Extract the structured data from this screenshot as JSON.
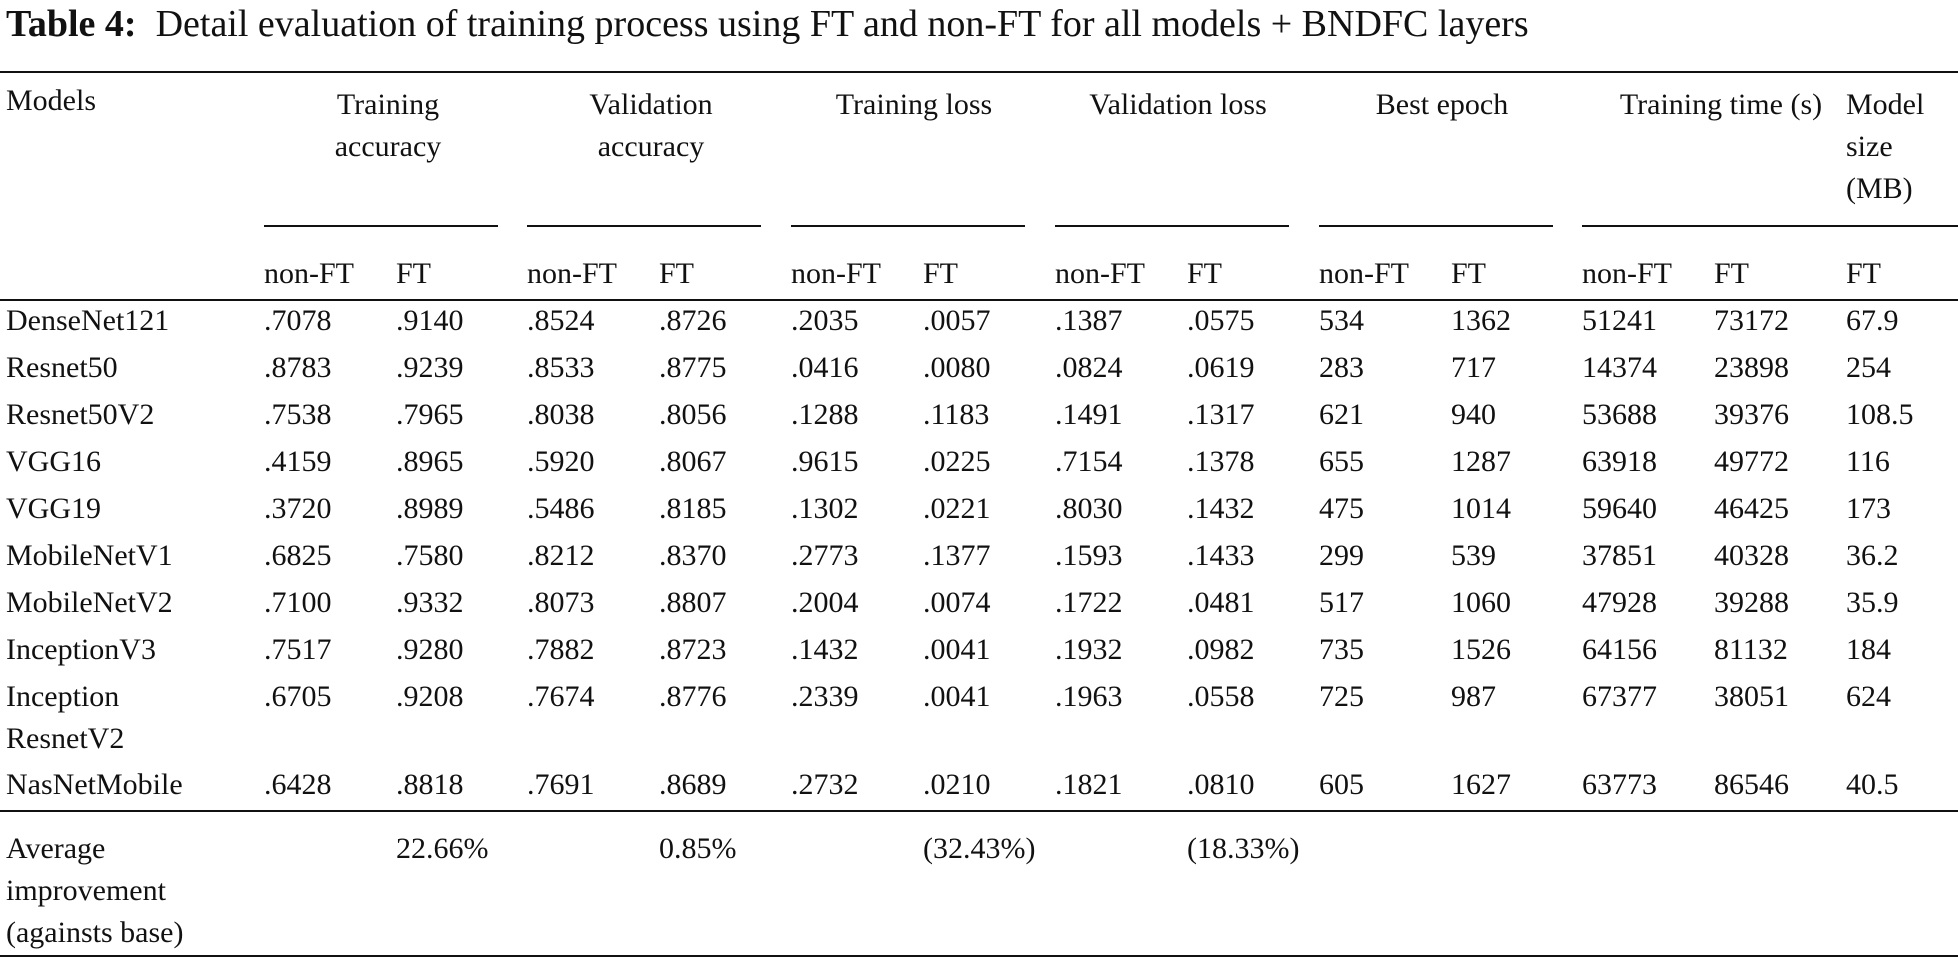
{
  "caption": {
    "label": "Table 4:",
    "text": "Detail evaluation of training process using FT and non-FT for all models + BNDFC layers"
  },
  "header": {
    "models": "Models",
    "groups": [
      {
        "line1": "Training",
        "line2": "accuracy"
      },
      {
        "line1": "Validation",
        "line2": "accuracy"
      },
      {
        "line1": "Training loss",
        "line2": ""
      },
      {
        "line1": "Validation loss",
        "line2": ""
      },
      {
        "line1": "Best epoch",
        "line2": ""
      },
      {
        "line1": "Training time (s)",
        "line2": ""
      }
    ],
    "model_size": {
      "line1": "Model",
      "line2": "size",
      "line3": "(MB)"
    },
    "sub": [
      "non-FT",
      "FT",
      "non-FT",
      "FT",
      "non-FT",
      "FT",
      "non-FT",
      "FT",
      "non-FT",
      "FT",
      "non-FT",
      "FT",
      "FT"
    ]
  },
  "rows": [
    {
      "model": "DenseNet121",
      "values": [
        ".7078",
        ".9140",
        ".8524",
        ".8726",
        ".2035",
        ".0057",
        ".1387",
        ".0575",
        "534",
        "1362",
        "51241",
        "73172",
        "67.9"
      ]
    },
    {
      "model": "Resnet50",
      "values": [
        ".8783",
        ".9239",
        ".8533",
        ".8775",
        ".0416",
        ".0080",
        ".0824",
        ".0619",
        "283",
        "717",
        "14374",
        "23898",
        "254"
      ]
    },
    {
      "model": "Resnet50V2",
      "values": [
        ".7538",
        ".7965",
        ".8038",
        ".8056",
        ".1288",
        ".1183",
        ".1491",
        ".1317",
        "621",
        "940",
        "53688",
        "39376",
        "108.5"
      ]
    },
    {
      "model": "VGG16",
      "values": [
        ".4159",
        ".8965",
        ".5920",
        ".8067",
        ".9615",
        ".0225",
        ".7154",
        ".1378",
        "655",
        "1287",
        "63918",
        "49772",
        "116"
      ]
    },
    {
      "model": "VGG19",
      "values": [
        ".3720",
        ".8989",
        ".5486",
        ".8185",
        ".1302",
        ".0221",
        ".8030",
        ".1432",
        "475",
        "1014",
        "59640",
        "46425",
        "173"
      ]
    },
    {
      "model": "MobileNetV1",
      "values": [
        ".6825",
        ".7580",
        ".8212",
        ".8370",
        ".2773",
        ".1377",
        ".1593",
        ".1433",
        "299",
        "539",
        "37851",
        "40328",
        "36.2"
      ]
    },
    {
      "model": "MobileNetV2",
      "values": [
        ".7100",
        ".9332",
        ".8073",
        ".8807",
        ".2004",
        ".0074",
        ".1722",
        ".0481",
        "517",
        "1060",
        "47928",
        "39288",
        "35.9"
      ]
    },
    {
      "model": "InceptionV3",
      "values": [
        ".7517",
        ".9280",
        ".7882",
        ".8723",
        ".1432",
        ".0041",
        ".1932",
        ".0982",
        "735",
        "1526",
        "64156",
        "81132",
        "184"
      ]
    },
    {
      "model": "Inception ResnetV2",
      "values": [
        ".6705",
        ".9208",
        ".7674",
        ".8776",
        ".2339",
        ".0041",
        ".1963",
        ".0558",
        "725",
        "987",
        "67377",
        "38051",
        "624"
      ]
    },
    {
      "model": "NasNetMobile",
      "values": [
        ".6428",
        ".8818",
        ".7691",
        ".8689",
        ".2732",
        ".0210",
        ".1821",
        ".0810",
        "605",
        "1627",
        "63773",
        "86546",
        "40.5"
      ]
    }
  ],
  "footer": {
    "label": "Average improvement (againsts base)",
    "values": [
      "22.66%",
      "0.85%",
      "(32.43%)",
      "(18.33%)"
    ]
  }
}
